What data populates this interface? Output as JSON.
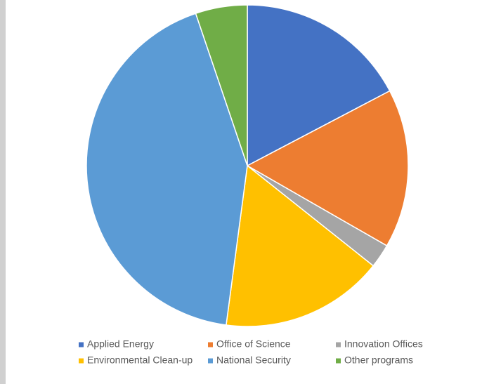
{
  "chart_data": {
    "type": "pie",
    "categories": [
      "Applied Energy",
      "Office of Science",
      "Innovation Offices",
      "Environmental Clean-up",
      "National Security",
      "Other programs"
    ],
    "values": [
      17.3,
      16.0,
      2.4,
      16.4,
      42.7,
      5.2
    ],
    "colors": [
      "#4472c4",
      "#ed7d31",
      "#a5a5a5",
      "#ffc000",
      "#5b9bd5",
      "#70ad47"
    ]
  }
}
